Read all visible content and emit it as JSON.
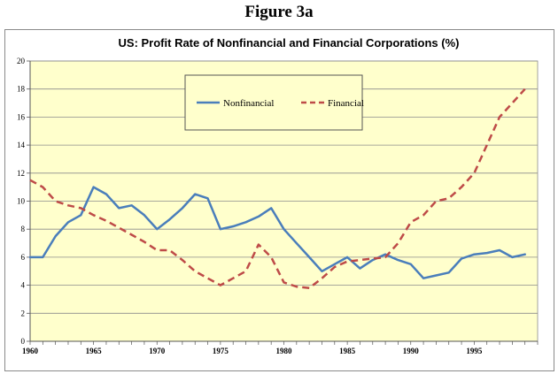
{
  "figure_label": "Figure 3a",
  "chart_data": {
    "type": "line",
    "title": "US: Profit Rate of Nonfinancial and Financial Corporations (%)",
    "xlabel": "",
    "ylabel": "",
    "xlim": [
      1960,
      2000
    ],
    "ylim": [
      0,
      20
    ],
    "y_ticks": [
      0,
      2,
      4,
      6,
      8,
      10,
      12,
      14,
      16,
      18,
      20
    ],
    "x_ticks": [
      1960,
      1965,
      1970,
      1975,
      1980,
      1985,
      1990,
      1995
    ],
    "grid": "horizontal",
    "plot_background": "#ffffcc",
    "legend": {
      "position": "top-center"
    },
    "x": [
      1960,
      1961,
      1962,
      1963,
      1964,
      1965,
      1966,
      1967,
      1968,
      1969,
      1970,
      1971,
      1972,
      1973,
      1974,
      1975,
      1976,
      1977,
      1978,
      1979,
      1980,
      1981,
      1982,
      1983,
      1984,
      1985,
      1986,
      1987,
      1988,
      1989,
      1990,
      1991,
      1992,
      1993,
      1994,
      1995,
      1996,
      1997,
      1998,
      1999
    ],
    "series": [
      {
        "name": "Nonfinancial",
        "color": "#4a7ebb",
        "style": "solid",
        "values": [
          6.0,
          6.0,
          7.5,
          8.5,
          9.0,
          11.0,
          10.5,
          9.5,
          9.7,
          9.0,
          8.0,
          8.7,
          9.5,
          10.5,
          10.2,
          8.0,
          8.2,
          8.5,
          8.9,
          9.5,
          8.0,
          7.0,
          6.0,
          5.0,
          5.5,
          6.0,
          5.2,
          5.8,
          6.2,
          5.8,
          5.5,
          4.5,
          4.7,
          4.9,
          5.9,
          6.2,
          6.3,
          6.5,
          6.0,
          6.2
        ]
      },
      {
        "name": "Financial",
        "color": "#be4b48",
        "style": "dashed",
        "values": [
          11.5,
          11.0,
          10.0,
          9.7,
          9.5,
          9.0,
          8.6,
          8.1,
          7.6,
          7.1,
          6.5,
          6.5,
          5.8,
          5.0,
          4.5,
          4.0,
          4.5,
          5.0,
          6.9,
          6.0,
          4.2,
          3.9,
          3.8,
          4.5,
          5.3,
          5.7,
          5.8,
          5.9,
          6.0,
          7.0,
          8.5,
          9.0,
          10.0,
          10.2,
          11.0,
          12.0,
          14.0,
          16.0,
          17.0,
          18.0
        ]
      }
    ]
  }
}
